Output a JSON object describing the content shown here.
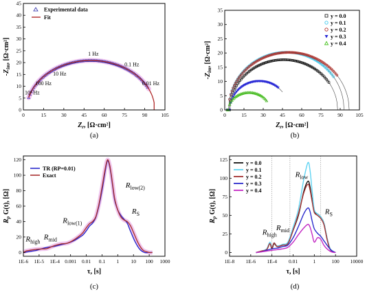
{
  "chart_data": [
    {
      "id": "a",
      "type": "scatter",
      "caption": "(a)",
      "xlabel": "Z",
      "xlabel_sub": "r",
      "xlabel_unit": ", [Ω·cm²]",
      "ylabel": "-Z",
      "ylabel_sub": "im",
      "ylabel_unit": ", [Ω·cm²]",
      "xlim": [
        0,
        105
      ],
      "ylim": [
        0,
        45
      ],
      "xticks": [
        0,
        15,
        30,
        45,
        60,
        75,
        90,
        105
      ],
      "yticks": [
        0,
        5,
        10,
        15,
        20,
        25,
        30,
        35,
        40,
        45
      ],
      "legend": {
        "position": "top-left",
        "entries": [
          "Experimental data",
          "Fit"
        ]
      },
      "colors": {
        "exp": "#2a2aa8",
        "fit": "#b02a2a",
        "halo": "#f2c6f0"
      },
      "series": [
        {
          "name": "Experimental data",
          "center": 48,
          "radius": 44,
          "x_range": [
            4,
            93
          ]
        },
        {
          "name": "Fit",
          "center": 50,
          "radius": 47.5,
          "x_range": [
            4,
            97
          ]
        }
      ],
      "annotations": [
        {
          "text": "10³ Hz",
          "x": 1,
          "y": 6.5
        },
        {
          "text": "100 Hz",
          "x": 9,
          "y": 10.5
        },
        {
          "text": "10 Hz",
          "x": 22,
          "y": 14.5
        },
        {
          "text": "1 Hz",
          "x": 48,
          "y": 23
        },
        {
          "text": "0.1 Hz",
          "x": 75,
          "y": 18.5
        },
        {
          "text": "0.01 Hz",
          "x": 88,
          "y": 10.5
        }
      ]
    },
    {
      "id": "b",
      "type": "scatter",
      "caption": "(b)",
      "xlabel": "Z",
      "xlabel_sub": "r",
      "xlabel_unit": ", [Ω·cm²]",
      "ylabel": "-Z",
      "ylabel_sub": "im",
      "ylabel_unit": ", [Ω·cm²]",
      "xlim": [
        0,
        105
      ],
      "ylim": [
        0,
        35
      ],
      "xticks": [
        0,
        15,
        30,
        45,
        60,
        75,
        90,
        105
      ],
      "yticks": [
        0,
        5,
        10,
        15,
        20,
        25,
        30,
        35
      ],
      "legend": {
        "position": "top-right"
      },
      "series": [
        {
          "name": "y = 0.0",
          "color": "#111111",
          "center": 46,
          "radius": 42,
          "x_end": 82,
          "fit_end": 91
        },
        {
          "name": "y = 0.1",
          "color": "#3fc9ee",
          "center": 48,
          "radius": 45,
          "x_end": 85,
          "fit_end": 95
        },
        {
          "name": "y = 0.2",
          "color": "#b5302a",
          "center": 50,
          "radius": 47,
          "x_end": 88,
          "fit_end": 98
        },
        {
          "name": "y = 0.3",
          "color": "#2a2ad6",
          "center": 27,
          "radius": 23,
          "x_end": 42,
          "fit_end": 45
        },
        {
          "name": "y = 0.4",
          "color": "#46c21e",
          "center": 19,
          "radius": 16,
          "x_end": 33,
          "fit_end": 33
        }
      ]
    },
    {
      "id": "c",
      "type": "line",
      "caption": "(c)",
      "xlabel": "τ, [s]",
      "ylabel": "R",
      "ylabel_sub": "p",
      "ylabel_unit": " G(t), [Ω]",
      "xscale": "log",
      "xlim": [
        -6,
        3
      ],
      "ylim": [
        -5,
        125
      ],
      "xtick_labels": [
        "1E-6",
        "1E-5",
        "1E-4",
        "0.001",
        "0.01",
        "0.1",
        "1",
        "10",
        "100",
        "1000"
      ],
      "yticks": [
        0,
        20,
        40,
        60,
        80,
        100,
        120
      ],
      "legend": {
        "position": "top-left",
        "entries": [
          "TR (RP=0.01)",
          "Exact"
        ]
      },
      "series": [
        {
          "name": "TR (RP=0.01)",
          "color": "#2a2acc",
          "x": [
            -6,
            -5.8,
            -5.5,
            -5.2,
            -4.8,
            -4.5,
            -4,
            -3.6,
            -3.2,
            -2.8,
            -2.4,
            -2.2,
            -2,
            -1.8,
            -1.6,
            -1.4,
            -1.2,
            -1,
            -0.8,
            -0.65,
            -0.5,
            -0.35,
            -0.2,
            0,
            0.2,
            0.4,
            0.6,
            0.8,
            1.1,
            1.4,
            1.7,
            2,
            2.2
          ],
          "y": [
            0,
            0.5,
            1.5,
            2.5,
            5,
            6.5,
            8,
            10,
            12,
            15,
            20,
            23,
            28,
            34,
            38,
            45,
            60,
            80,
            105,
            119,
            110,
            90,
            68,
            55,
            48,
            43,
            38,
            28,
            14,
            4,
            0,
            0,
            0
          ]
        },
        {
          "name": "Exact",
          "color": "#a83030",
          "x": [
            -6,
            -5.8,
            -5.5,
            -5.2,
            -4.8,
            -4.5,
            -4,
            -3.6,
            -3.2,
            -2.8,
            -2.4,
            -2.2,
            -2,
            -1.8,
            -1.6,
            -1.4,
            -1.2,
            -1,
            -0.8,
            -0.65,
            -0.5,
            -0.35,
            -0.2,
            0,
            0.2,
            0.4,
            0.6,
            0.8,
            1,
            1.3,
            1.6,
            2,
            2.2
          ],
          "y": [
            0,
            2,
            3,
            4,
            4.5,
            5,
            9,
            11,
            12,
            16,
            22,
            26,
            32,
            37,
            40,
            46,
            62,
            84,
            108,
            120,
            112,
            92,
            70,
            55,
            46,
            42,
            40,
            35,
            26,
            12,
            3,
            0,
            0
          ]
        }
      ],
      "annotations": [
        {
          "main": "R",
          "sub": "high",
          "x": -5.85,
          "y": 14
        },
        {
          "main": "R",
          "sub": "mid",
          "x": -4.7,
          "y": 17
        },
        {
          "main": "R",
          "sub": "low(1)",
          "x": -3.5,
          "y": 38
        },
        {
          "main": "R",
          "sub": "low(2)",
          "x": 0.5,
          "y": 84
        },
        {
          "main": "R",
          "sub": "S",
          "x": 0.9,
          "y": 50
        }
      ]
    },
    {
      "id": "d",
      "type": "line",
      "caption": "(d)",
      "xlabel": "τ, [s]",
      "ylabel": "R",
      "ylabel_sub": "p",
      "ylabel_unit": " G(t), [Ω]",
      "xscale": "log",
      "xlim": [
        -8,
        4
      ],
      "ylim": [
        -5,
        130
      ],
      "xtick_labels": [
        "1E-8",
        "1E-6",
        "1E-4",
        "0.01",
        "1",
        "100",
        "10000"
      ],
      "yticks": [
        0,
        25,
        50,
        75,
        100,
        125
      ],
      "vlines": [
        -4,
        -2.3,
        0.6
      ],
      "legend": {
        "position": "top-left"
      },
      "series": [
        {
          "name": "y = 0.0",
          "color": "#111111",
          "x": [
            -5.5,
            -5,
            -4.5,
            -4.2,
            -4,
            -3.8,
            -3.5,
            -3,
            -2.5,
            -2,
            -1.5,
            -1,
            -0.6,
            -0.4,
            -0.2,
            0,
            0.3,
            0.6,
            0.9,
            1.2,
            1.5,
            2
          ],
          "y": [
            0,
            2,
            4,
            12,
            5,
            12,
            8,
            10,
            12,
            30,
            50,
            82,
            96,
            88,
            70,
            55,
            52,
            48,
            40,
            20,
            5,
            0
          ]
        },
        {
          "name": "y = 0.1",
          "color": "#5fd3f2",
          "x": [
            -5.5,
            -5,
            -4.5,
            -4.2,
            -4,
            -3.8,
            -3.5,
            -3,
            -2.5,
            -2,
            -1.5,
            -1,
            -0.6,
            -0.4,
            -0.2,
            0,
            0.3,
            0.6,
            0.9,
            1.2,
            1.5,
            2
          ],
          "y": [
            0,
            2,
            5,
            14,
            7,
            13,
            9,
            11,
            14,
            34,
            58,
            98,
            121,
            110,
            82,
            58,
            52,
            48,
            40,
            20,
            5,
            0
          ]
        },
        {
          "name": "y = 0.2",
          "color": "#a33030",
          "x": [
            -5.5,
            -5,
            -4.5,
            -4.2,
            -4,
            -3.8,
            -3.5,
            -3,
            -2.5,
            -2,
            -1.5,
            -1,
            -0.6,
            -0.4,
            -0.2,
            0,
            0.3,
            0.6,
            0.9,
            1.2,
            1.5,
            2
          ],
          "y": [
            0,
            2,
            4,
            12,
            6,
            13,
            8,
            10,
            12,
            30,
            52,
            80,
            92,
            84,
            68,
            54,
            50,
            46,
            38,
            18,
            4,
            0
          ]
        },
        {
          "name": "y = 0.3",
          "color": "#2a2acc",
          "x": [
            -5.5,
            -5,
            -4.5,
            -4,
            -3.5,
            -3,
            -2.5,
            -2,
            -1.5,
            -1,
            -0.6,
            -0.4,
            -0.2,
            0,
            0.3,
            0.6,
            0.9,
            1.2,
            1.6,
            2
          ],
          "y": [
            0,
            1,
            3,
            5,
            6,
            8,
            10,
            20,
            35,
            52,
            60,
            55,
            42,
            32,
            26,
            22,
            16,
            10,
            3,
            0
          ]
        },
        {
          "name": "y = 0.4",
          "color": "#c327c3",
          "x": [
            -5.5,
            -5,
            -4.5,
            -4,
            -3.5,
            -3,
            -2.5,
            -2,
            -1.5,
            -1,
            -0.6,
            -0.4,
            -0.2,
            0,
            0.3,
            0.6,
            0.9,
            1.2,
            1.6,
            2
          ],
          "y": [
            0,
            1,
            2,
            3,
            4,
            5,
            7,
            14,
            24,
            33,
            38,
            34,
            24,
            14,
            20,
            18,
            10,
            5,
            1,
            0
          ]
        }
      ],
      "annotations": [
        {
          "main": "R",
          "sub": "high",
          "x": -4.9,
          "y": 24
        },
        {
          "main": "R",
          "sub": "mid",
          "x": -3.6,
          "y": 30
        },
        {
          "main": "R",
          "sub": "low",
          "x": -1.8,
          "y": 102
        },
        {
          "main": "R",
          "sub": "S",
          "x": 1.0,
          "y": 52
        }
      ]
    }
  ]
}
